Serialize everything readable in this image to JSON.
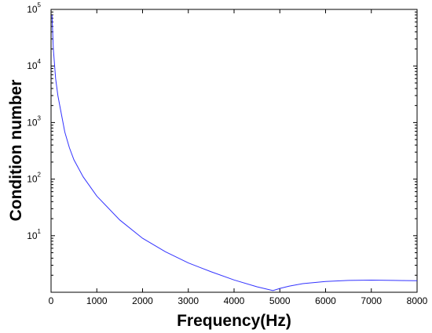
{
  "chart_data": {
    "type": "line",
    "title": "",
    "xlabel": "Frequency(Hz)",
    "ylabel": "Condition number",
    "xlim": [
      0,
      8000
    ],
    "ylim": [
      1,
      100000
    ],
    "yscale": "log",
    "grid": false,
    "legend": "none",
    "x_ticks": [
      "0",
      "1000",
      "2000",
      "3000",
      "4000",
      "5000",
      "6000",
      "7000",
      "8000"
    ],
    "y_ticks": [
      {
        "base": "10",
        "exp": "1"
      },
      {
        "base": "10",
        "exp": "2"
      },
      {
        "base": "10",
        "exp": "3"
      },
      {
        "base": "10",
        "exp": "4"
      },
      {
        "base": "10",
        "exp": "5"
      }
    ],
    "series": [
      {
        "color": "#3333ff",
        "x": [
          20,
          50,
          100,
          150,
          200,
          300,
          400,
          500,
          700,
          1000,
          1500,
          2000,
          2500,
          3000,
          3500,
          4000,
          4500,
          4850,
          5000,
          5200,
          5500,
          6000,
          6500,
          7000,
          7500,
          8000
        ],
        "y": [
          80000,
          20000,
          6000,
          3000,
          1800,
          680,
          360,
          220,
          110,
          50,
          19,
          9,
          5.2,
          3.3,
          2.3,
          1.65,
          1.25,
          1.07,
          1.17,
          1.28,
          1.42,
          1.55,
          1.62,
          1.64,
          1.62,
          1.6
        ]
      }
    ]
  }
}
